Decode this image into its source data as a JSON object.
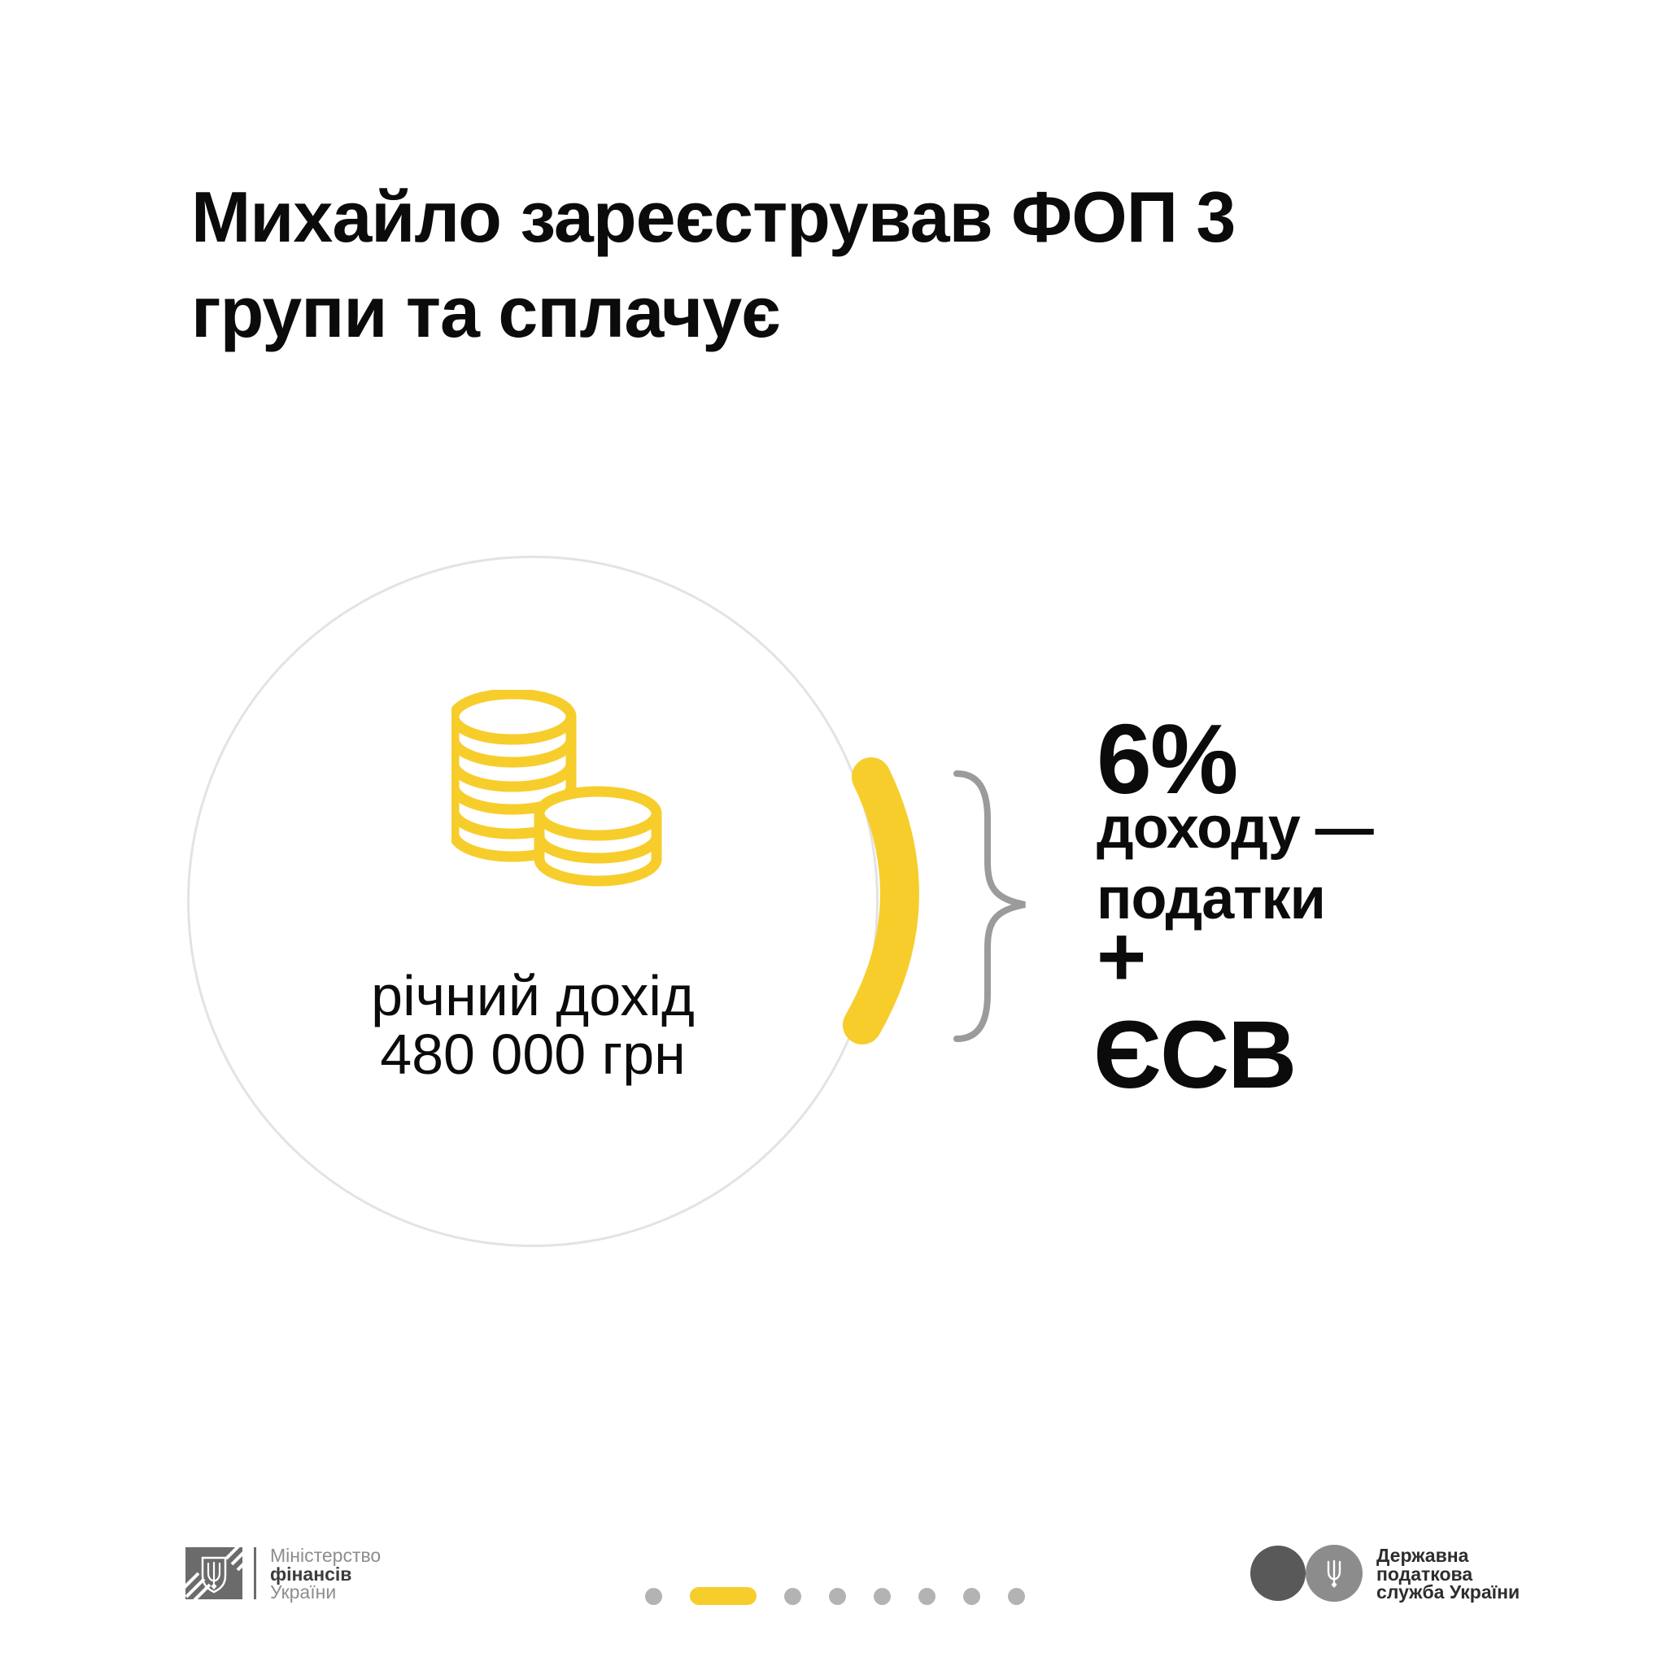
{
  "title": {
    "line1": "Михайло зареєстрував ФОП 3",
    "line2": "групи та сплачує"
  },
  "income_circle": {
    "icon": "coins-stack-icon",
    "label_line1": "річний дохід",
    "label_line2": "480 000 грн"
  },
  "connector": {
    "highlight_icon": "highlight-arc",
    "brace_icon": "curly-brace"
  },
  "result": {
    "rate": "6%",
    "rate_desc_line1": "доходу —",
    "rate_desc_line2": "податки",
    "plus_sign": "+",
    "esv": "ЄСВ"
  },
  "footer": {
    "minfin": {
      "icon": "trident-shield-icon",
      "line1": "Міністерство",
      "line2": "фінансів",
      "line3": "України"
    },
    "pagination": {
      "total": 8,
      "active_index": 1
    },
    "tax_service": {
      "icon": "trident-circle-icon",
      "line1": "Державна",
      "line2": "податкова",
      "line3": "служба України"
    }
  },
  "colors": {
    "accent_yellow": "#F7CD2C",
    "circle_border": "#E3E3E3",
    "brace_gray": "#9B9B9B",
    "dot_gray": "#B3B3B3",
    "text_black": "#0B0B0B",
    "logo_emblem": "#6B6B6B",
    "logo_gray_dark": "#595959",
    "logo_gray_light": "#8C8C8C",
    "footer_gray": "#8D8D8D",
    "footer_dark": "#3C3C3C"
  }
}
